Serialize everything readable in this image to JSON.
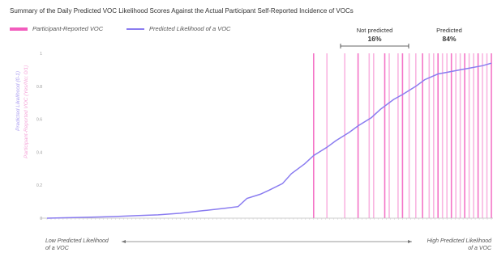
{
  "title": "Summary of the Daily Predicted VOC Likelihood Scores Against the Actual Participant Self-Reported Incidence of VOCs",
  "legend": {
    "reported_label": "Participant-Reported VOC",
    "predicted_label": "Predicted Likelihood of a VOC",
    "reported_color": "#f25cbd",
    "predicted_color": "#8a7cf0"
  },
  "annotations": {
    "not_predicted_label": "Not predicted",
    "not_predicted_value": "16%",
    "predicted_label": "Predicted",
    "predicted_value": "84%"
  },
  "yaxis": {
    "predicted_label": "Predicted Likelihood (0-1)",
    "reported_label": "Participant-Reported VOC (Yes/No; 0/1)"
  },
  "xnotes": {
    "low_line1": "Low Predicted Likelihood",
    "low_line2": "of a VOC",
    "high_line1": "High Predicted Likelihood",
    "high_line2": "of a VOC"
  },
  "chart_data": {
    "type": "line",
    "title": "Summary of the Daily Predicted VOC Likelihood Scores Against the Actual Participant Self-Reported Incidence of VOCs",
    "ylim": [
      0,
      1
    ],
    "yticks": [
      "0",
      "0.2",
      "0.4",
      "0.6",
      "0.8",
      "1"
    ],
    "grid": false,
    "legend_position": "top-left",
    "series": [
      {
        "name": "Predicted Likelihood of a VOC",
        "x": [
          0,
          0.05,
          0.1,
          0.15,
          0.2,
          0.25,
          0.3,
          0.35,
          0.4,
          0.43,
          0.45,
          0.48,
          0.5,
          0.53,
          0.55,
          0.58,
          0.6,
          0.63,
          0.65,
          0.68,
          0.7,
          0.73,
          0.75,
          0.78,
          0.8,
          0.83,
          0.85,
          0.88,
          0.9,
          0.93,
          0.95,
          0.98,
          1.0
        ],
        "values": [
          0,
          0.003,
          0.006,
          0.01,
          0.015,
          0.02,
          0.03,
          0.045,
          0.06,
          0.07,
          0.12,
          0.145,
          0.17,
          0.21,
          0.27,
          0.33,
          0.38,
          0.43,
          0.47,
          0.52,
          0.56,
          0.61,
          0.66,
          0.72,
          0.75,
          0.8,
          0.84,
          0.875,
          0.885,
          0.9,
          0.91,
          0.925,
          0.94
        ]
      },
      {
        "name": "Participant-Reported VOC",
        "type": "event-bars",
        "x": [
          0.6,
          0.63,
          0.67,
          0.7,
          0.725,
          0.735,
          0.76,
          0.77,
          0.79,
          0.8,
          0.815,
          0.83,
          0.845,
          0.86,
          0.87,
          0.88,
          0.89,
          0.9,
          0.91,
          0.92,
          0.93,
          0.94,
          0.95,
          0.96,
          0.97,
          0.98,
          0.99,
          1.0
        ],
        "values": [
          1,
          1,
          1,
          1,
          1,
          1,
          1,
          1,
          1,
          1,
          1,
          1,
          1,
          1,
          1,
          1,
          1,
          1,
          1,
          1,
          1,
          1,
          1,
          1,
          1,
          1,
          1,
          1
        ]
      }
    ]
  }
}
